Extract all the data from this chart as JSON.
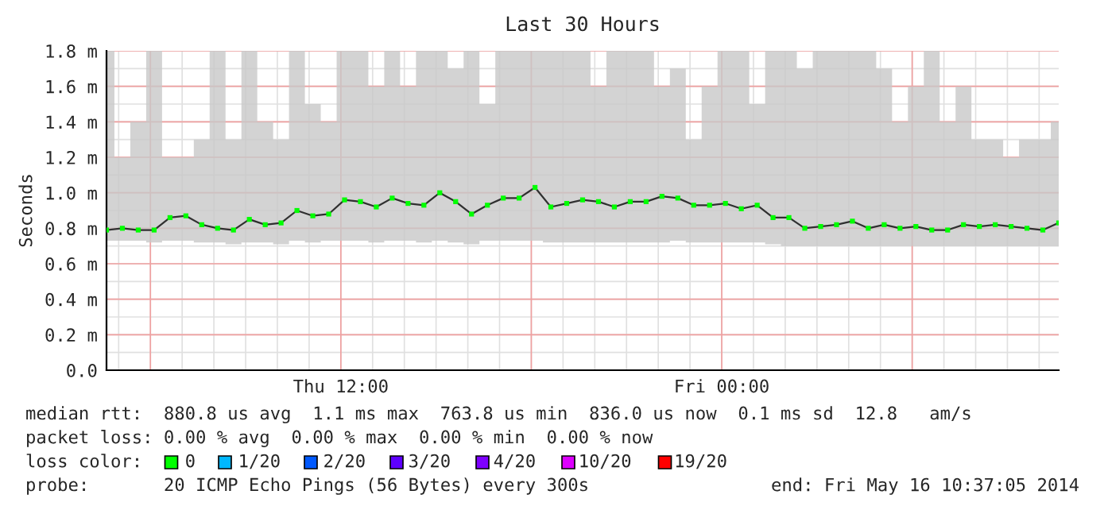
{
  "chart_data": {
    "type": "line",
    "title": "Last 30 Hours",
    "ylabel": "Seconds",
    "x": [
      "2014-05-15T04:37",
      "2014-05-15T05:07",
      "2014-05-15T05:37",
      "2014-05-15T06:07",
      "2014-05-15T06:37",
      "2014-05-15T07:07",
      "2014-05-15T07:37",
      "2014-05-15T08:07",
      "2014-05-15T08:37",
      "2014-05-15T09:07",
      "2014-05-15T09:37",
      "2014-05-15T10:07",
      "2014-05-15T10:37",
      "2014-05-15T11:07",
      "2014-05-15T11:37",
      "2014-05-15T12:07",
      "2014-05-15T12:37",
      "2014-05-15T13:07",
      "2014-05-15T13:37",
      "2014-05-15T14:07",
      "2014-05-15T14:37",
      "2014-05-15T15:07",
      "2014-05-15T15:37",
      "2014-05-15T16:07",
      "2014-05-15T16:37",
      "2014-05-15T17:07",
      "2014-05-15T17:37",
      "2014-05-15T18:07",
      "2014-05-15T18:37",
      "2014-05-15T19:07",
      "2014-05-15T19:37",
      "2014-05-15T20:07",
      "2014-05-15T20:37",
      "2014-05-15T21:07",
      "2014-05-15T21:37",
      "2014-05-15T22:07",
      "2014-05-15T22:37",
      "2014-05-15T23:07",
      "2014-05-15T23:37",
      "2014-05-16T00:07",
      "2014-05-16T00:37",
      "2014-05-16T01:07",
      "2014-05-16T01:37",
      "2014-05-16T02:07",
      "2014-05-16T02:37",
      "2014-05-16T03:07",
      "2014-05-16T03:37",
      "2014-05-16T04:07",
      "2014-05-16T04:37",
      "2014-05-16T05:07",
      "2014-05-16T05:37",
      "2014-05-16T06:07",
      "2014-05-16T06:37",
      "2014-05-16T07:07",
      "2014-05-16T07:37",
      "2014-05-16T08:07",
      "2014-05-16T08:37",
      "2014-05-16T09:07",
      "2014-05-16T09:37",
      "2014-05-16T10:07",
      "2014-05-16T10:37"
    ],
    "series": [
      {
        "color": "#00ff00",
        "values": [
          0.79,
          0.8,
          0.79,
          0.79,
          0.86,
          0.87,
          0.82,
          0.8,
          0.79,
          0.85,
          0.82,
          0.83,
          0.9,
          0.87,
          0.88,
          0.96,
          0.95,
          0.92,
          0.97,
          0.94,
          0.93,
          1.0,
          0.95,
          0.88,
          0.93,
          0.97,
          0.97,
          1.03,
          0.92,
          0.94,
          0.96,
          0.95,
          0.92,
          0.95,
          0.95,
          0.98,
          0.97,
          0.93,
          0.93,
          0.94,
          0.91,
          0.93,
          0.86,
          0.86,
          0.8,
          0.81,
          0.82,
          0.84,
          0.8,
          0.82,
          0.8,
          0.81,
          0.79,
          0.79,
          0.82,
          0.81,
          0.82,
          0.81,
          0.8,
          0.79,
          0.83
        ],
        "lower": [
          0.73,
          0.73,
          0.73,
          0.72,
          0.73,
          0.73,
          0.72,
          0.72,
          0.71,
          0.72,
          0.72,
          0.71,
          0.73,
          0.72,
          0.73,
          0.73,
          0.73,
          0.72,
          0.73,
          0.73,
          0.72,
          0.73,
          0.72,
          0.71,
          0.73,
          0.73,
          0.73,
          0.73,
          0.72,
          0.72,
          0.72,
          0.72,
          0.72,
          0.72,
          0.72,
          0.72,
          0.73,
          0.72,
          0.72,
          0.72,
          0.72,
          0.72,
          0.71,
          0.7,
          0.7,
          0.7,
          0.7,
          0.7,
          0.7,
          0.7,
          0.7,
          0.7,
          0.7,
          0.7,
          0.7,
          0.7,
          0.7,
          0.7,
          0.7,
          0.7,
          0.7
        ],
        "upper": [
          1.8,
          1.2,
          1.4,
          1.8,
          1.2,
          1.2,
          1.3,
          1.8,
          1.3,
          1.8,
          1.4,
          1.3,
          1.8,
          1.5,
          1.4,
          1.8,
          1.8,
          1.6,
          1.8,
          1.6,
          1.8,
          1.8,
          1.7,
          1.8,
          1.5,
          1.8,
          1.8,
          1.8,
          1.8,
          1.8,
          1.8,
          1.6,
          1.8,
          1.8,
          1.8,
          1.6,
          1.7,
          1.3,
          1.6,
          1.8,
          1.8,
          1.5,
          1.8,
          1.8,
          1.7,
          1.8,
          1.8,
          1.8,
          1.8,
          1.7,
          1.4,
          1.6,
          1.8,
          1.4,
          1.6,
          1.3,
          1.3,
          1.2,
          1.3,
          1.3,
          1.4
        ]
      }
    ],
    "marker": "square",
    "xlim": [
      "2014-05-15T04:37",
      "2014-05-16T10:37"
    ],
    "xticks": [
      {
        "value": "2014-05-15T06:00",
        "label": null
      },
      {
        "value": "2014-05-15T12:00",
        "label": "Thu 12:00"
      },
      {
        "value": "2014-05-15T18:00",
        "label": null
      },
      {
        "value": "2014-05-16T00:00",
        "label": "Fri 00:00"
      },
      {
        "value": "2014-05-16T06:00",
        "label": null
      }
    ],
    "ylim": [
      0,
      1.8
    ],
    "yticks": [
      {
        "value": 0,
        "label": "0.0"
      },
      {
        "value": 0.2,
        "label": "0.2 m"
      },
      {
        "value": 0.4,
        "label": "0.4 m"
      },
      {
        "value": 0.6,
        "label": "0.6 m"
      },
      {
        "value": 0.8,
        "label": "0.8 m"
      },
      {
        "value": 1.0,
        "label": "1.0 m"
      },
      {
        "value": 1.2,
        "label": "1.2 m"
      },
      {
        "value": 1.4,
        "label": "1.4 m"
      },
      {
        "value": 1.6,
        "label": "1.6 m"
      },
      {
        "value": 1.8,
        "label": "1.8 m"
      }
    ],
    "grid": true,
    "annotations": [
      "median rtt:  880.8 us avg  1.1 ms max  763.8 us min  836.0 us now  0.1 ms sd  12.8   am/s",
      "packet loss: 0.00 % avg  0.00 % max  0.00 % min  0.00 % now",
      "loss color:    0    1/20    2/20    3/20    4/20    10/20    19/20",
      "probe:       20 ICMP Echo Pings (56 Bytes) every 300s",
      "end: Fri May 16 10:37:05 2014"
    ]
  }
}
